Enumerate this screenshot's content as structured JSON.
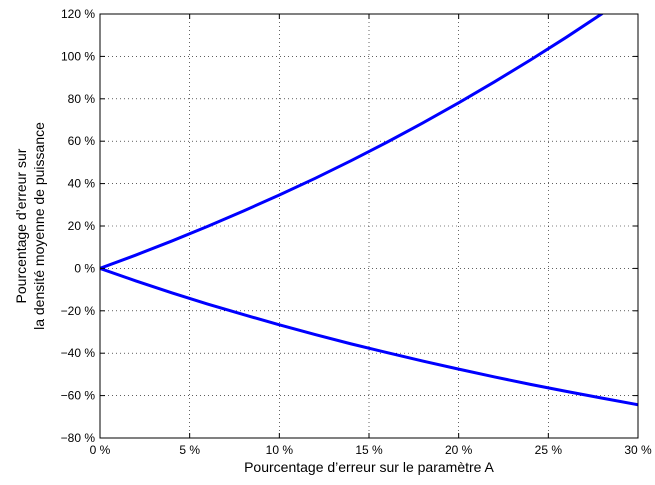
{
  "chart_data": {
    "type": "line",
    "title": "",
    "xlabel": "Pourcentage d’erreur sur le paramètre A",
    "ylabel_lines": [
      "Pourcentage d’erreur sur",
      "la densité moyenne de puissance"
    ],
    "xlim": [
      0,
      30
    ],
    "ylim": [
      -80,
      120
    ],
    "xticks": [
      0,
      5,
      10,
      15,
      20,
      25,
      30
    ],
    "yticks": [
      -80,
      -60,
      -40,
      -20,
      0,
      20,
      40,
      60,
      80,
      100,
      120
    ],
    "xtick_labels": [
      "0 %",
      "5 %",
      "10 %",
      "15 %",
      "20 %",
      "25 %",
      "30 %"
    ],
    "ytick_labels": [
      "−80 %",
      "−60 %",
      "−40 %",
      "−20 %",
      "0 %",
      "20 %",
      "40 %",
      "60 %",
      "80 %",
      "100 %",
      "120 %"
    ],
    "grid": true,
    "grid_style": "dotted",
    "line_color": "#0000ff",
    "series": [
      {
        "x": [
          0,
          2,
          4,
          6,
          8,
          10,
          12,
          14,
          16,
          18,
          20,
          22,
          24,
          26,
          28,
          30
        ],
        "y": [
          0,
          6.3,
          12.9,
          19.8,
          27.1,
          34.6,
          42.5,
          50.8,
          59.5,
          68.6,
          78.1,
          88.0,
          98.3,
          109.0,
          120.2,
          132.0
        ]
      },
      {
        "x": [
          0,
          2,
          4,
          6,
          8,
          10,
          12,
          14,
          16,
          18,
          20,
          22,
          24,
          26,
          28,
          30
        ],
        "y": [
          0,
          -5.9,
          -11.5,
          -16.8,
          -21.8,
          -26.6,
          -31.2,
          -35.6,
          -39.7,
          -43.7,
          -47.5,
          -51.2,
          -54.7,
          -58.0,
          -61.2,
          -64.3
        ]
      }
    ]
  }
}
